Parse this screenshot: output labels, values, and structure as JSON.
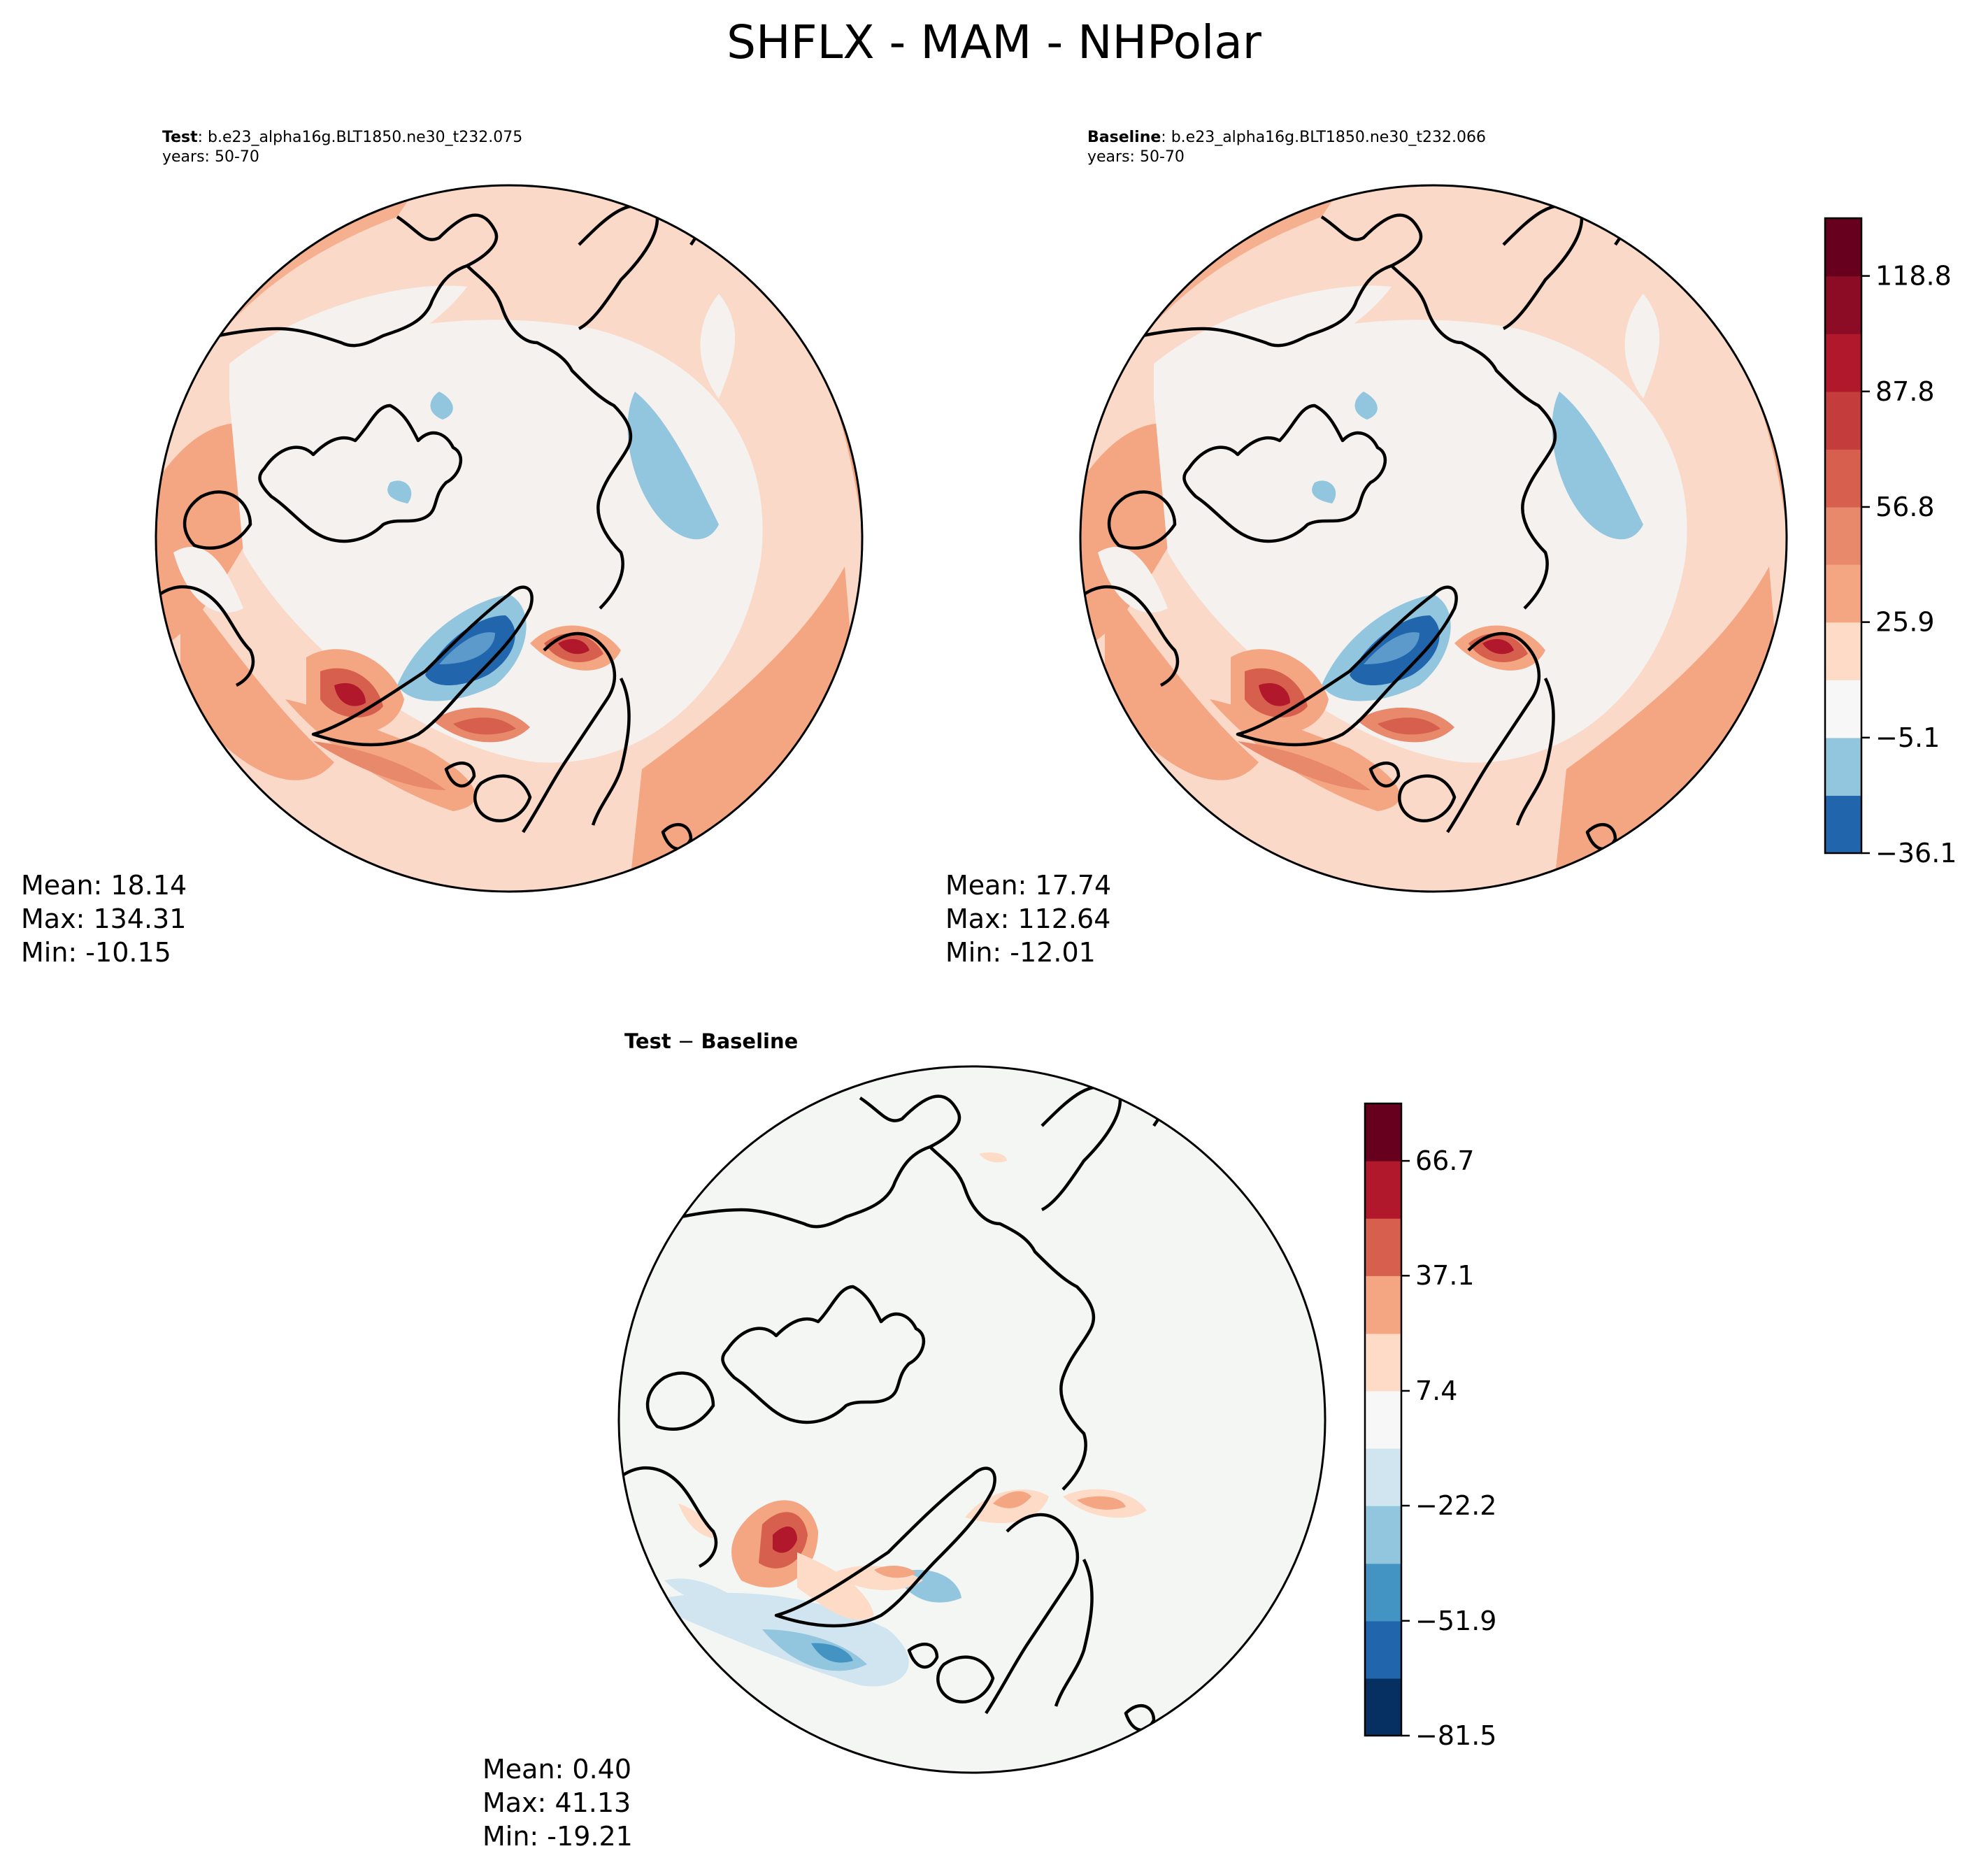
{
  "figure": {
    "title": "SHFLX - MAM - NHPolar"
  },
  "panels": [
    {
      "id": "test",
      "title_bold": "Test",
      "title_case": ": b.e23_alpha16g.BLT1850.ne30_t232.075",
      "years": "years: 50-70",
      "stats": {
        "mean": "Mean: 18.14",
        "max": "Max: 134.31",
        "min": "Min: -10.15"
      }
    },
    {
      "id": "baseline",
      "title_bold": "Baseline",
      "title_case": ": b.e23_alpha16g.BLT1850.ne30_t232.066",
      "years": "years: 50-70",
      "stats": {
        "mean": "Mean: 17.74",
        "max": "Max: 112.64",
        "min": "Min: -12.01"
      }
    },
    {
      "id": "diff",
      "title_bold": "Test",
      "title_sep": " − ",
      "title_bold2": "Baseline",
      "stats": {
        "mean": "Mean:  0.40",
        "max": "Max: 41.13",
        "min": "Min: -19.21"
      }
    }
  ],
  "chart_data": [
    {
      "type": "heatmap",
      "title": "Test: b.e23_alpha16g.BLT1850.ne30_t232.075",
      "projection": "north-polar-stereographic",
      "variable": "SHFLX",
      "season": "MAM",
      "mean": 18.14,
      "max": 134.31,
      "min": -10.15,
      "colorbar": {
        "levels": [
          -36.1,
          -20.6,
          -5.1,
          10.4,
          25.9,
          41.4,
          56.8,
          72.3,
          87.8,
          103.3,
          118.8,
          134.3
        ],
        "ticks": [
          -36.1,
          -5.1,
          25.9,
          56.8,
          87.8,
          118.8
        ],
        "tick_labels": [
          "−36.1",
          "−5.1",
          "25.9",
          "56.8",
          "87.8",
          "118.8"
        ],
        "colors": [
          "#2166ac",
          "#92c5de",
          "#f7f7f7",
          "#fddbc7",
          "#f4a582",
          "#e8896c",
          "#d6604d",
          "#c43c3c",
          "#b2182b",
          "#8c0c25",
          "#67001f"
        ]
      }
    },
    {
      "type": "heatmap",
      "title": "Baseline: b.e23_alpha16g.BLT1850.ne30_t232.066",
      "projection": "north-polar-stereographic",
      "variable": "SHFLX",
      "season": "MAM",
      "mean": 17.74,
      "max": 112.64,
      "min": -12.01,
      "colorbar": "shared with Test panel"
    },
    {
      "type": "heatmap",
      "title": "Test − Baseline",
      "projection": "north-polar-stereographic",
      "mean": 0.4,
      "max": 41.13,
      "min": -19.21,
      "colorbar": {
        "levels": [
          -81.5,
          -66.7,
          -51.9,
          -37.1,
          -22.2,
          -7.4,
          7.4,
          22.2,
          37.1,
          51.9,
          66.7,
          81.5
        ],
        "ticks": [
          -81.5,
          -51.9,
          -22.2,
          7.4,
          37.1,
          66.7
        ],
        "tick_labels": [
          "−81.5",
          "−51.9",
          "−22.2",
          "7.4",
          "37.1",
          "66.7"
        ],
        "colors": [
          "#053061",
          "#2166ac",
          "#4393c3",
          "#92c5de",
          "#d1e5f0",
          "#f7f7f7",
          "#fddbc7",
          "#f4a582",
          "#d6604d",
          "#b2182b",
          "#67001f"
        ]
      }
    }
  ],
  "colors": {
    "blue_dark": "#2166ac",
    "blue_light": "#92c5de",
    "neutral": "#f4f1ef",
    "red_light": "#fddbc7",
    "red_mid": "#f4a582",
    "red_strong": "#d6604d",
    "red_dark": "#b2182b"
  }
}
